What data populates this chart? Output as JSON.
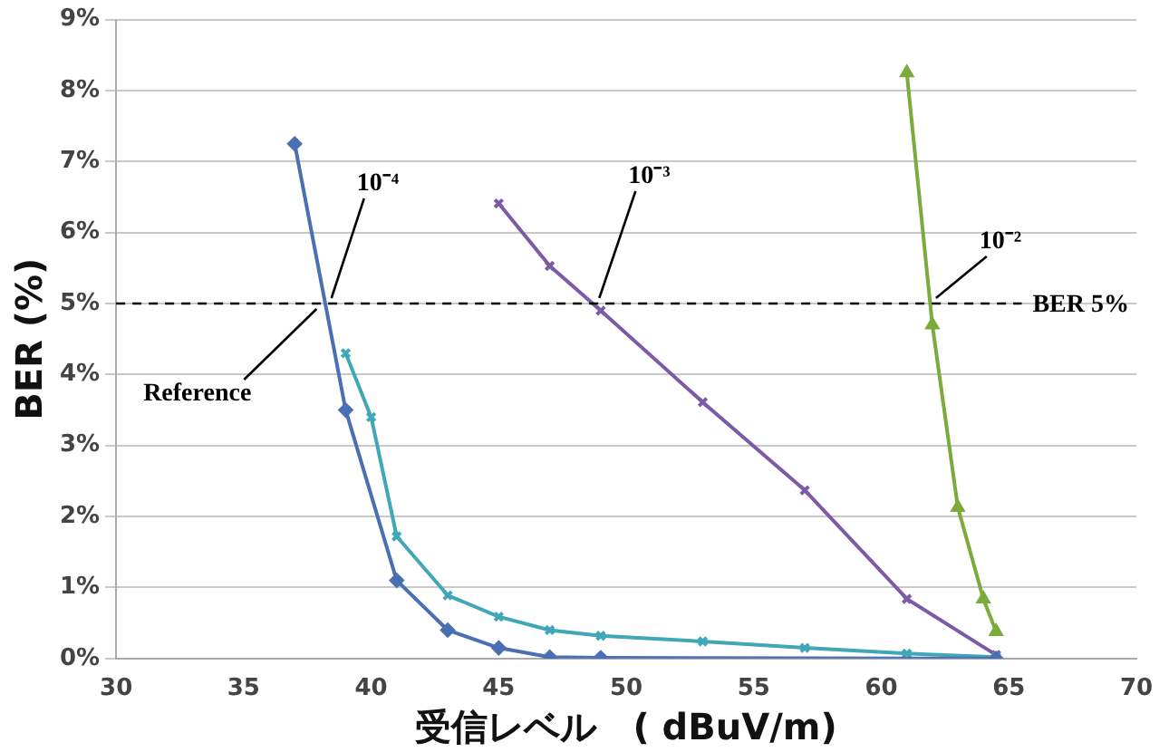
{
  "chart_data": {
    "type": "line",
    "xlabel": "受信レベル　( dBuV/m)",
    "ylabel": "BER (%)",
    "xlim": [
      30,
      70
    ],
    "xticks": [
      30,
      35,
      40,
      45,
      50,
      55,
      60,
      65,
      70
    ],
    "ylim": [
      0,
      9
    ],
    "yticks": [
      {
        "value": 0,
        "label": "0%"
      },
      {
        "value": 1,
        "label": "1%"
      },
      {
        "value": 2,
        "label": "2%"
      },
      {
        "value": 3,
        "label": "3%"
      },
      {
        "value": 4,
        "label": "4%"
      },
      {
        "value": 5,
        "label": "5%"
      },
      {
        "value": 6,
        "label": "6%"
      },
      {
        "value": 7,
        "label": "7%"
      },
      {
        "value": 8,
        "label": "8%"
      },
      {
        "value": 9,
        "label": "9%"
      }
    ],
    "grid": "y",
    "legend": false,
    "series": [
      {
        "color": "#4a6fb5",
        "marker": "diamond",
        "x": [
          37,
          39,
          41,
          43,
          45,
          47,
          49,
          64.5
        ],
        "values": [
          7.25,
          3.5,
          1.1,
          0.4,
          0.15,
          0.02,
          0.01,
          0
        ]
      },
      {
        "color": "#3fa7b5",
        "marker": "cross",
        "x": [
          39,
          40,
          41,
          43,
          45,
          47,
          49,
          53,
          57,
          61,
          64.5
        ],
        "values": [
          4.3,
          3.4,
          1.72,
          0.89,
          0.59,
          0.4,
          0.32,
          0.24,
          0.15,
          0.07,
          0.02
        ]
      },
      {
        "color": "#7b5aa6",
        "marker": "cross",
        "x": [
          45,
          47,
          49,
          53,
          57,
          61,
          64.5
        ],
        "values": [
          6.41,
          5.53,
          4.9,
          3.61,
          2.37,
          0.84,
          0.05
        ]
      },
      {
        "color": "#7aab3b",
        "marker": "triangle",
        "x": [
          61,
          62,
          63,
          64,
          64.5
        ],
        "values": [
          8.25,
          4.7,
          2.13,
          0.84,
          0.38
        ]
      }
    ],
    "ref_lines": [
      {
        "axis": "y",
        "value": 5,
        "label": "BER 5%",
        "line_style": "dashed",
        "color": "#000000"
      }
    ],
    "annotations": [
      {
        "text": "10⁻⁴",
        "x": 38.3,
        "y": 5
      },
      {
        "text": "Reference",
        "x": 38,
        "y": 5
      },
      {
        "text": "10⁻³",
        "x": 48.8,
        "y": 5
      },
      {
        "text": "10⁻²",
        "x": 62,
        "y": 5
      }
    ]
  }
}
